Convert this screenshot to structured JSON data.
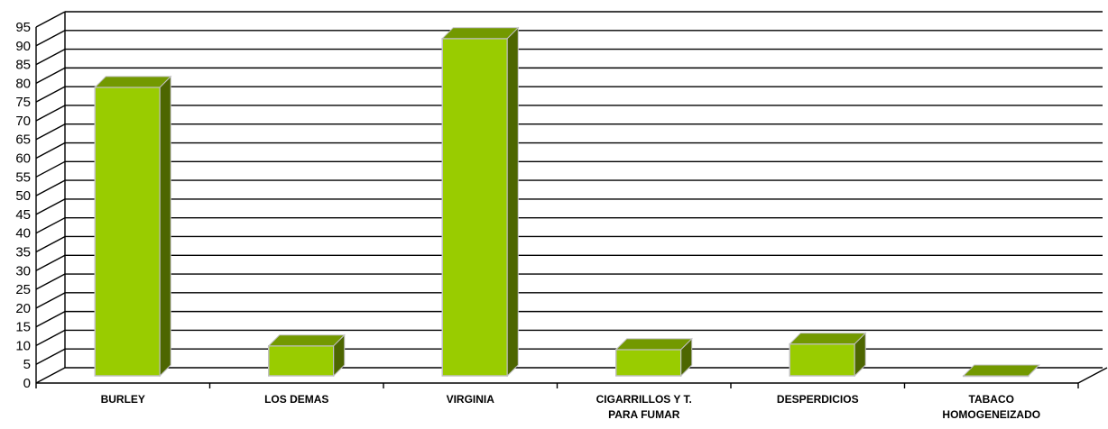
{
  "chart_data": {
    "type": "bar",
    "title": "",
    "xlabel": "",
    "ylabel": "",
    "categories": [
      [
        "BURLEY"
      ],
      [
        "LOS DEMAS"
      ],
      [
        "VIRGINIA"
      ],
      [
        "CIGARRILLOS    Y T.",
        "PARA FUMAR"
      ],
      [
        "DESPERDICIOS"
      ],
      [
        "TABACO",
        "HOMOGENEIZADO"
      ]
    ],
    "values": [
      77,
      8,
      90,
      7,
      8.5,
      0
    ],
    "ylim": [
      0,
      95
    ],
    "y_ticks": [
      0,
      5,
      10,
      15,
      20,
      25,
      30,
      35,
      40,
      45,
      50,
      55,
      60,
      65,
      70,
      75,
      80,
      85,
      90,
      95
    ],
    "grid": true,
    "legend": "none",
    "colors": {
      "bar_front": "#99cc00",
      "bar_side": "#4d6600",
      "bar_top": "#739900",
      "bar_edge": "#c0c0c0"
    }
  }
}
